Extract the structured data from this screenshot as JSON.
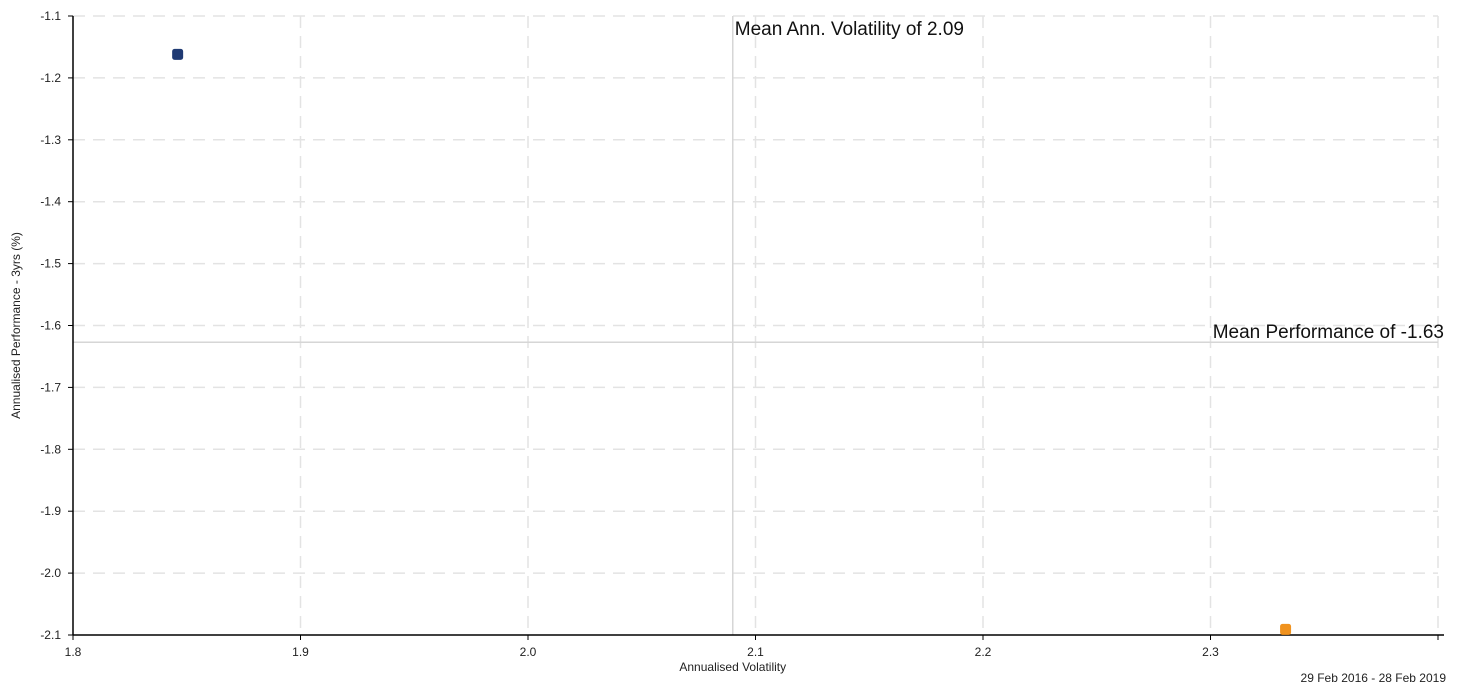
{
  "chart_data": {
    "type": "scatter",
    "xlabel": "Annualised Volatility",
    "ylabel": "Annualised Performance - 3yrs (%)",
    "xlim": [
      1.8,
      2.4
    ],
    "ylim": [
      -2.1,
      -1.1
    ],
    "x_ticks": [
      "1.8",
      "1.9",
      "2.0",
      "2.1",
      "2.2",
      "2.3"
    ],
    "y_ticks": [
      "-1.1",
      "-1.2",
      "-1.3",
      "-1.4",
      "-1.5",
      "-1.6",
      "-1.7",
      "-1.8",
      "-1.9",
      "-2.0",
      "-2.1"
    ],
    "grid": true,
    "series": [
      {
        "color": "#1f3a73",
        "points": [
          {
            "x": 1.846,
            "y": -1.162
          }
        ]
      },
      {
        "color": "#f0921e",
        "points": [
          {
            "x": 2.333,
            "y": -2.091
          }
        ]
      }
    ],
    "mean_volatility": {
      "value": 2.09,
      "label": "Mean Ann. Volatility of  2.09"
    },
    "mean_performance": {
      "value": -1.627,
      "label": "Mean Performance of  -1.63"
    },
    "date_range": "29 Feb 2016 - 28 Feb 2019"
  }
}
